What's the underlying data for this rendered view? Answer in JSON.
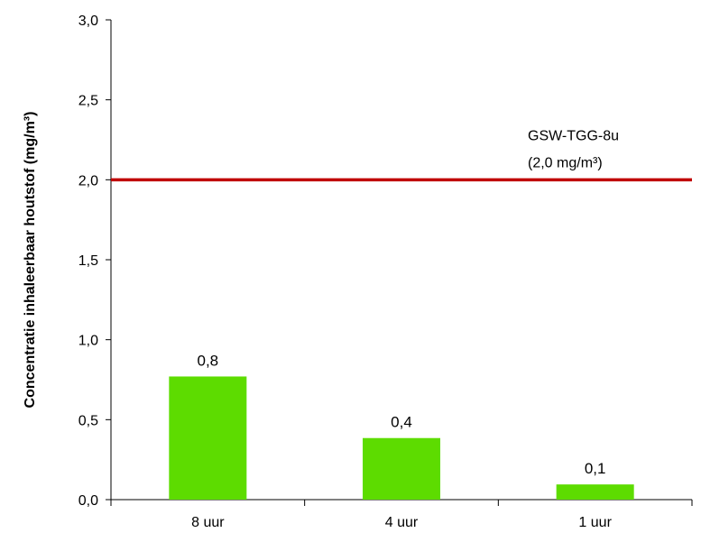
{
  "chart_data": {
    "type": "bar",
    "title": "",
    "xlabel": "",
    "ylabel": "Concentratie inhaleerbaar houtstof (mg/m³)",
    "categories": [
      "8 uur",
      "4 uur",
      "1 uur"
    ],
    "values": [
      0.77,
      0.385,
      0.095
    ],
    "data_labels": [
      "0,8",
      "0,4",
      "0,1"
    ],
    "ylim": [
      0,
      3.0
    ],
    "yticks": [
      0,
      0.5,
      1.0,
      1.5,
      2.0,
      2.5,
      3.0
    ],
    "ytick_labels": [
      "0,0",
      "0,5",
      "1,0",
      "1,5",
      "2,0",
      "2,5",
      "3,0"
    ],
    "grid": false,
    "reference_line": {
      "value": 2.0,
      "label_line1": "GSW-TGG-8u",
      "label_line2": "(2,0 mg/m³)"
    },
    "colors": {
      "bar": "#5ddc00",
      "reference_line": "#c00000",
      "axis": "#000000"
    }
  }
}
